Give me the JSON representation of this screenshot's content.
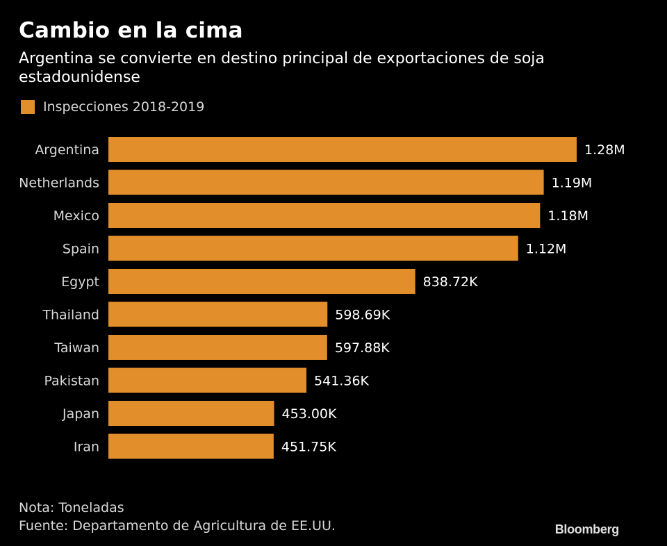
{
  "header": {
    "title": "Cambio en la cima",
    "subtitle": "Argentina se convierte en destino principal de exportaciones de soja estadounidense"
  },
  "legend": {
    "label": "Inspecciones 2018-2019"
  },
  "colors": {
    "bar": "#E28E2A",
    "background": "#000000",
    "text": "#FFFFFF",
    "muted": "#D8D8D8"
  },
  "chart_data": {
    "type": "bar",
    "orientation": "horizontal",
    "title": "Cambio en la cima",
    "subtitle": "Argentina se convierte en destino principal de exportaciones de soja estadounidense",
    "series_name": "Inspecciones 2018-2019",
    "categories": [
      "Argentina",
      "Netherlands",
      "Mexico",
      "Spain",
      "Egypt",
      "Thailand",
      "Taiwan",
      "Pakistan",
      "Japan",
      "Iran"
    ],
    "values": [
      1280000,
      1190000,
      1180000,
      1120000,
      838720,
      598690,
      597880,
      541360,
      453000,
      451750
    ],
    "labels": [
      "1.28M",
      "1.19M",
      "1.18M",
      "1.12M",
      "838.72K",
      "598.69K",
      "597.88K",
      "541.36K",
      "453.00K",
      "451.75K"
    ],
    "unit": "Toneladas",
    "xlim": [
      0,
      1280000
    ]
  },
  "footer": {
    "note": "Nota: Toneladas",
    "source": "Fuente: Departamento de Agricultura de EE.UU.",
    "brand": "Bloomberg"
  }
}
